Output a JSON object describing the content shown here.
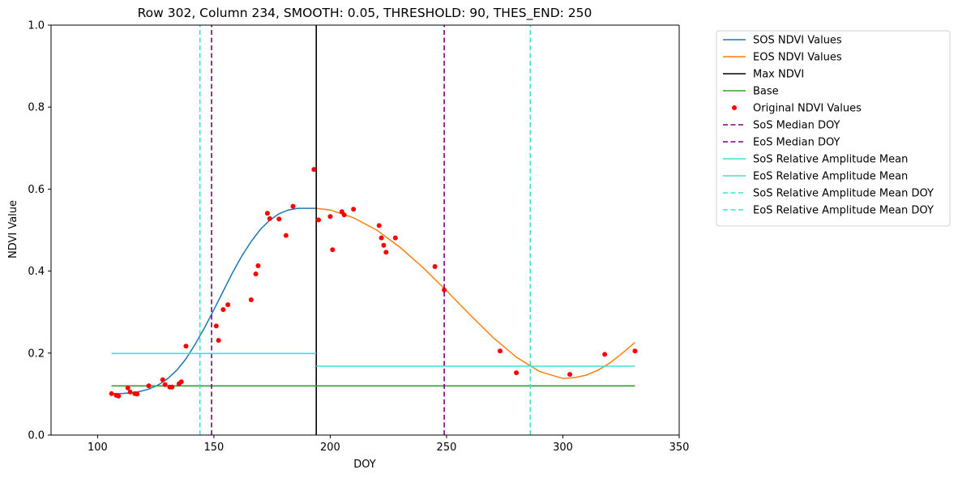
{
  "chart_data": {
    "type": "line",
    "title": "Row 302, Column 234, SMOOTH: 0.05, THRESHOLD: 90, THES_END: 250",
    "xlabel": "DOY",
    "ylabel": "NDVI Value",
    "xlim": [
      80,
      350
    ],
    "ylim": [
      0.0,
      1.0
    ],
    "xticks": [
      100,
      150,
      200,
      250,
      300,
      350
    ],
    "yticks": [
      0.0,
      0.2,
      0.4,
      0.6,
      0.8,
      1.0
    ],
    "xtick_labels": [
      "100",
      "150",
      "200",
      "250",
      "300",
      "350"
    ],
    "ytick_labels": [
      "0.0",
      "0.2",
      "0.4",
      "0.6",
      "0.8",
      "1.0"
    ],
    "grid": false,
    "legend_position": "outside-right",
    "series": [
      {
        "name": "SOS NDVI Values",
        "kind": "line",
        "color": "#1f77b4",
        "points": [
          [
            106,
            0.101
          ],
          [
            110,
            0.101
          ],
          [
            114,
            0.103
          ],
          [
            118,
            0.106
          ],
          [
            122,
            0.112
          ],
          [
            126,
            0.122
          ],
          [
            130,
            0.137
          ],
          [
            134,
            0.158
          ],
          [
            138,
            0.186
          ],
          [
            142,
            0.222
          ],
          [
            146,
            0.262
          ],
          [
            150,
            0.306
          ],
          [
            154,
            0.351
          ],
          [
            158,
            0.396
          ],
          [
            162,
            0.437
          ],
          [
            166,
            0.472
          ],
          [
            170,
            0.502
          ],
          [
            174,
            0.524
          ],
          [
            178,
            0.54
          ],
          [
            182,
            0.549
          ],
          [
            186,
            0.553
          ],
          [
            190,
            0.553
          ],
          [
            194,
            0.553
          ]
        ]
      },
      {
        "name": "EOS NDVI Values",
        "kind": "line",
        "color": "#ff7f0e",
        "points": [
          [
            194,
            0.553
          ],
          [
            200,
            0.549
          ],
          [
            210,
            0.53
          ],
          [
            220,
            0.5
          ],
          [
            230,
            0.458
          ],
          [
            240,
            0.408
          ],
          [
            250,
            0.352
          ],
          [
            260,
            0.294
          ],
          [
            270,
            0.238
          ],
          [
            280,
            0.19
          ],
          [
            290,
            0.155
          ],
          [
            300,
            0.138
          ],
          [
            305,
            0.14
          ],
          [
            310,
            0.146
          ],
          [
            315,
            0.158
          ],
          [
            320,
            0.175
          ],
          [
            325,
            0.197
          ],
          [
            331,
            0.226
          ]
        ]
      },
      {
        "name": "Max NDVI",
        "kind": "vline",
        "color": "#000000",
        "x": 194,
        "ymin": 0.0,
        "ymax": 1.0,
        "style": "solid"
      },
      {
        "name": "Base",
        "kind": "hline",
        "color": "#2ca02c",
        "y": 0.12,
        "xmin": 106,
        "xmax": 331,
        "style": "solid"
      },
      {
        "name": "Original NDVI Values",
        "kind": "scatter",
        "color": "#ff0000",
        "points": [
          [
            106,
            0.101
          ],
          [
            108,
            0.097
          ],
          [
            109,
            0.095
          ],
          [
            113,
            0.115
          ],
          [
            114,
            0.105
          ],
          [
            116,
            0.101
          ],
          [
            117,
            0.1
          ],
          [
            122,
            0.12
          ],
          [
            128,
            0.135
          ],
          [
            129,
            0.123
          ],
          [
            131,
            0.117
          ],
          [
            132,
            0.117
          ],
          [
            135,
            0.125
          ],
          [
            136,
            0.13
          ],
          [
            138,
            0.217
          ],
          [
            151,
            0.266
          ],
          [
            152,
            0.231
          ],
          [
            154,
            0.306
          ],
          [
            156,
            0.318
          ],
          [
            166,
            0.33
          ],
          [
            168,
            0.393
          ],
          [
            169,
            0.413
          ],
          [
            173,
            0.541
          ],
          [
            174,
            0.528
          ],
          [
            178,
            0.527
          ],
          [
            181,
            0.487
          ],
          [
            184,
            0.558
          ],
          [
            193,
            0.648
          ],
          [
            195,
            0.525
          ],
          [
            200,
            0.533
          ],
          [
            201,
            0.452
          ],
          [
            205,
            0.545
          ],
          [
            206,
            0.537
          ],
          [
            210,
            0.551
          ],
          [
            221,
            0.511
          ],
          [
            222,
            0.481
          ],
          [
            223,
            0.463
          ],
          [
            224,
            0.446
          ],
          [
            228,
            0.481
          ],
          [
            245,
            0.411
          ],
          [
            249,
            0.354
          ],
          [
            273,
            0.205
          ],
          [
            280,
            0.152
          ],
          [
            303,
            0.148
          ],
          [
            318,
            0.197
          ],
          [
            331,
            0.205
          ]
        ]
      },
      {
        "name": "SoS Median DOY",
        "kind": "vline",
        "color": "#800080",
        "x": 149,
        "ymin": 0.0,
        "ymax": 1.0,
        "style": "dashed"
      },
      {
        "name": "EoS Median DOY",
        "kind": "vline",
        "color": "#800080",
        "x": 249,
        "ymin": 0.0,
        "ymax": 1.0,
        "style": "dashed"
      },
      {
        "name": "SoS Relative Amplitude Mean",
        "kind": "hline",
        "color": "#40e0d0",
        "y": 0.199,
        "xmin": 106,
        "xmax": 194,
        "style": "solid"
      },
      {
        "name": "EoS Relative Amplitude Mean",
        "kind": "hline",
        "color": "#40e0d0",
        "y": 0.168,
        "xmin": 194,
        "xmax": 331,
        "style": "solid"
      },
      {
        "name": "SoS Relative Amplitude Mean DOY",
        "kind": "vline",
        "color": "#40e0d0",
        "x": 144,
        "ymin": 0.0,
        "ymax": 1.0,
        "style": "dashed"
      },
      {
        "name": "EoS Relative Amplitude Mean DOY",
        "kind": "vline",
        "color": "#40e0d0",
        "x": 286,
        "ymin": 0.0,
        "ymax": 1.0,
        "style": "dashed"
      }
    ]
  }
}
